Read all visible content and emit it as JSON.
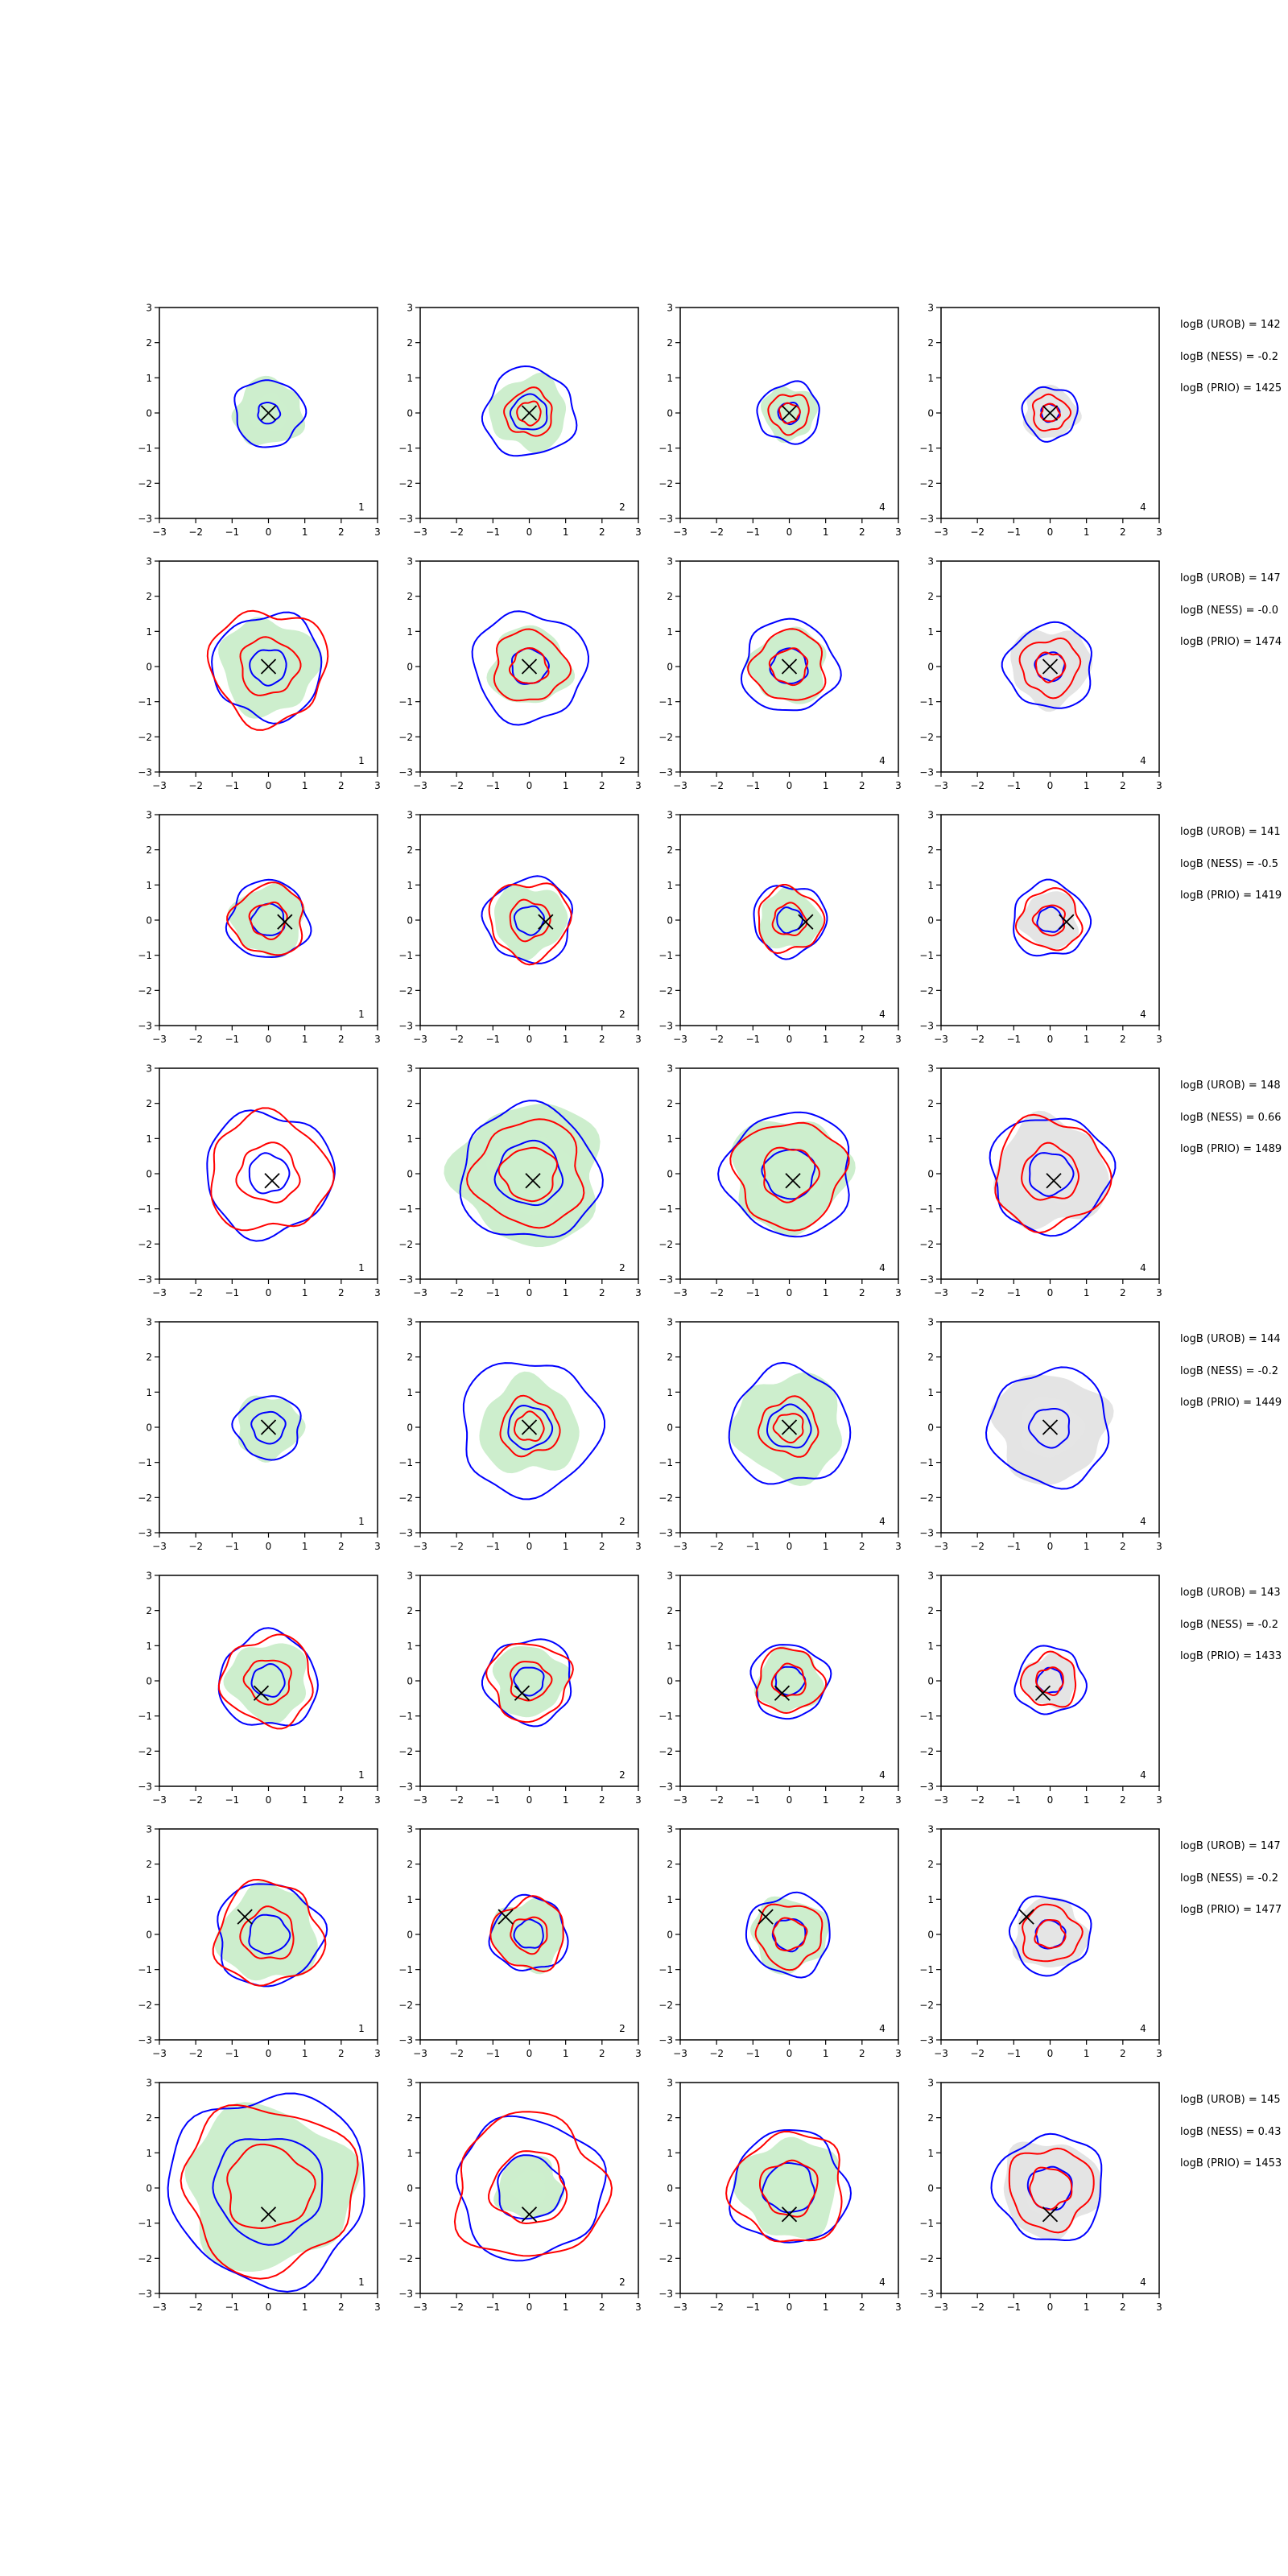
{
  "figure": {
    "background": "#ffffff",
    "colors": {
      "blue_contour": "#0000ff",
      "red_contour": "#ff0000",
      "green_fill": "#cdeecd",
      "grey_fill": "#e4e4e4",
      "marker": "#000000"
    }
  },
  "chart_data": {
    "type": "contour",
    "grid": false,
    "xlim": [
      -3,
      3
    ],
    "ylim": [
      -3,
      3
    ],
    "xticks": [
      "−3",
      "−2",
      "−1",
      "0",
      "1",
      "2",
      "3"
    ],
    "yticks": [
      "3",
      "2",
      "1",
      "0",
      "−1",
      "−2",
      "−3"
    ],
    "panel_labels": [
      "1",
      "2",
      "4",
      "4"
    ],
    "rows": [
      {
        "marker": [
          0.0,
          0.0
        ],
        "sizes": [
          [
            0.95,
            0.3,
            0,
            0.95
          ],
          [
            1.25,
            0.5,
            0.65,
            1.05
          ],
          [
            0.85,
            0.3,
            0.55,
            0.75
          ],
          [
            0.75,
            0.25,
            0.5,
            0.75
          ]
        ],
        "annotations": [
          "logB (UROB) = 142",
          "logB (NESS) = -0.2",
          "logB (PRIO) = 1425"
        ]
      },
      {
        "marker": [
          0.0,
          0.0
        ],
        "sizes": [
          [
            1.5,
            0.5,
            1.6,
            1.35
          ],
          [
            1.55,
            0.5,
            1.0,
            1.1
          ],
          [
            1.3,
            0.5,
            1.0,
            1.05
          ],
          [
            1.2,
            0.4,
            0.8,
            1.1
          ]
        ],
        "annotations": [
          "logB (UROB) = 147",
          "logB (NESS) = -0.0",
          "logB (PRIO) = 1474"
        ]
      },
      {
        "marker": [
          0.45,
          -0.05
        ],
        "sizes": [
          [
            1.1,
            0.45,
            1.0,
            1.0
          ],
          [
            1.2,
            0.4,
            1.1,
            1.0
          ],
          [
            1.0,
            0.35,
            0.9,
            0.85
          ],
          [
            1.05,
            0.35,
            0.85,
            0.8
          ]
        ],
        "annotations": [
          "logB (UROB) = 141",
          "logB (NESS) = -0.5",
          "logB (PRIO) = 1419"
        ]
      },
      {
        "marker": [
          0.1,
          -0.2
        ],
        "sizes": [
          [
            1.75,
            0.55,
            1.65,
            0
          ],
          [
            1.9,
            0.9,
            1.5,
            2.0
          ],
          [
            1.75,
            0.7,
            1.5,
            1.6
          ],
          [
            1.65,
            0.6,
            1.55,
            1.55
          ]
        ],
        "annotations": [
          "logB (UROB) = 148",
          "logB (NESS) = 0.66",
          "logB (PRIO) = 1489"
        ]
      },
      {
        "marker": [
          0.0,
          0.0
        ],
        "sizes": [
          [
            0.9,
            0.45,
            0,
            0.9
          ],
          [
            1.9,
            0.6,
            0.8,
            1.35
          ],
          [
            1.65,
            0.6,
            0.8,
            1.5
          ],
          [
            1.65,
            0.55,
            0,
            1.55
          ]
        ],
        "annotations": [
          "logB (UROB) = 144",
          "logB (NESS) = -0.2",
          "logB (PRIO) = 1449"
        ]
      },
      {
        "marker": [
          -0.2,
          -0.35
        ],
        "sizes": [
          [
            1.35,
            0.45,
            1.25,
            1.1
          ],
          [
            1.2,
            0.4,
            1.1,
            1.0
          ],
          [
            1.05,
            0.4,
            0.9,
            0.9
          ],
          [
            0.95,
            0.35,
            0.75,
            0.75
          ]
        ],
        "annotations": [
          "logB (UROB) = 143",
          "logB (NESS) = -0.2",
          "logB (PRIO) = 1433"
        ]
      },
      {
        "marker": [
          -0.65,
          0.5
        ],
        "sizes": [
          [
            1.45,
            0.55,
            1.45,
            1.35
          ],
          [
            1.05,
            0.4,
            1.0,
            1.0
          ],
          [
            1.15,
            0.45,
            0.9,
            1.05
          ],
          [
            1.1,
            0.4,
            0.8,
            1.0
          ]
        ],
        "annotations": [
          "logB (UROB) = 147",
          "logB (NESS) = -0.2",
          "logB (PRIO) = 1477"
        ]
      },
      {
        "marker": [
          0.0,
          -0.75
        ],
        "sizes": [
          [
            2.7,
            1.5,
            2.35,
            2.3
          ],
          [
            2.0,
            0.9,
            2.05,
            0.9
          ],
          [
            1.6,
            0.7,
            1.55,
            1.4
          ],
          [
            1.5,
            0.6,
            1.15,
            1.35
          ]
        ],
        "annotations": [
          "logB (UROB) = 145",
          "logB (NESS) = 0.43",
          "logB (PRIO) = 1453"
        ]
      }
    ]
  }
}
